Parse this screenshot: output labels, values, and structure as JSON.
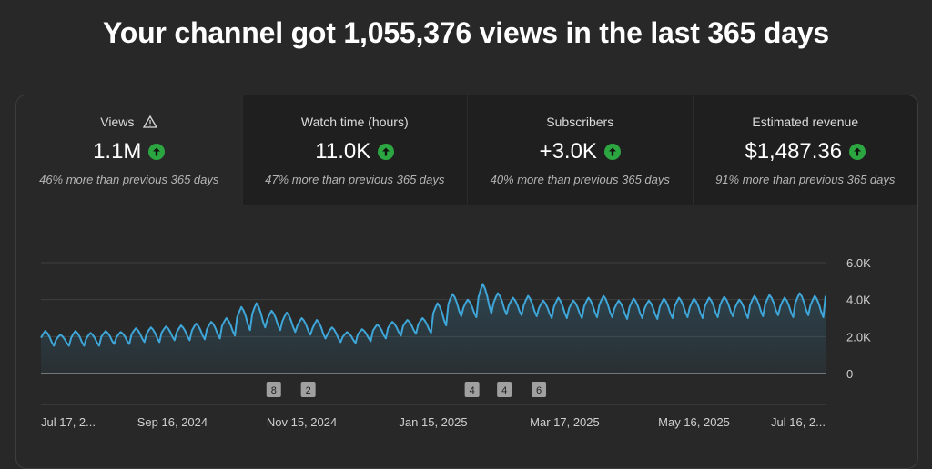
{
  "headline": "Your channel got 1,055,376 views in the last 365 days",
  "metrics": [
    {
      "label": "Views",
      "value": "1.1M",
      "note": "46% more than previous 365 days",
      "icon": "warning-icon"
    },
    {
      "label": "Watch time (hours)",
      "value": "11.0K",
      "note": "47% more than previous 365 days"
    },
    {
      "label": "Subscribers",
      "value": "+3.0K",
      "note": "40% more than previous 365 days"
    },
    {
      "label": "Estimated revenue",
      "value": "$1,487.36",
      "note": "91% more than previous 365 days"
    }
  ],
  "colors": {
    "line": "#3ea6d8",
    "up": "#2ba640"
  },
  "chart_data": {
    "type": "area",
    "y_ticks": [
      "6.0K",
      "4.0K",
      "2.0K",
      "0"
    ],
    "ylim": [
      0,
      6000
    ],
    "x_ticks": [
      "Jul 17, 2...",
      "Sep 16, 2024",
      "Nov 15, 2024",
      "Jan 15, 2025",
      "Mar 17, 2025",
      "May 16, 2025",
      "Jul 16, 2..."
    ],
    "markers": [
      {
        "label": "8",
        "date": "Nov 2, 2024"
      },
      {
        "label": "2",
        "date": "Nov 18, 2024"
      },
      {
        "label": "4",
        "date": "Feb 2, 2025"
      },
      {
        "label": "4",
        "date": "Feb 17, 2025"
      },
      {
        "label": "6",
        "date": "Mar 5, 2025"
      }
    ],
    "weekly_peaks": [
      2300,
      2100,
      2300,
      2200,
      2300,
      2250,
      2450,
      2500,
      2550,
      2600,
      2700,
      2800,
      3000,
      3600,
      3800,
      3400,
      3300,
      3000,
      2900,
      2500,
      2250,
      2400,
      2650,
      2800,
      2900,
      3000,
      3800,
      4300,
      4000,
      4850,
      4350,
      4100,
      4200,
      3950,
      4100,
      3950,
      4100,
      4200,
      3950,
      4050,
      3950,
      4050,
      4100,
      4050,
      4100,
      4150,
      4000,
      4200,
      4250,
      4100,
      4350,
      4200
    ],
    "weekly_troughs": [
      1500,
      1500,
      1500,
      1500,
      1600,
      1600,
      1700,
      1700,
      1800,
      1800,
      1850,
      1900,
      2050,
      2350,
      2500,
      2350,
      2250,
      2100,
      1900,
      1700,
      1650,
      1750,
      1900,
      2050,
      2150,
      2200,
      2600,
      3100,
      3050,
      3250,
      3200,
      3150,
      3100,
      3000,
      3000,
      3000,
      3050,
      3050,
      2950,
      3000,
      2950,
      3000,
      3050,
      3000,
      3050,
      3100,
      3000,
      3100,
      3150,
      3050,
      3150,
      3050
    ]
  }
}
